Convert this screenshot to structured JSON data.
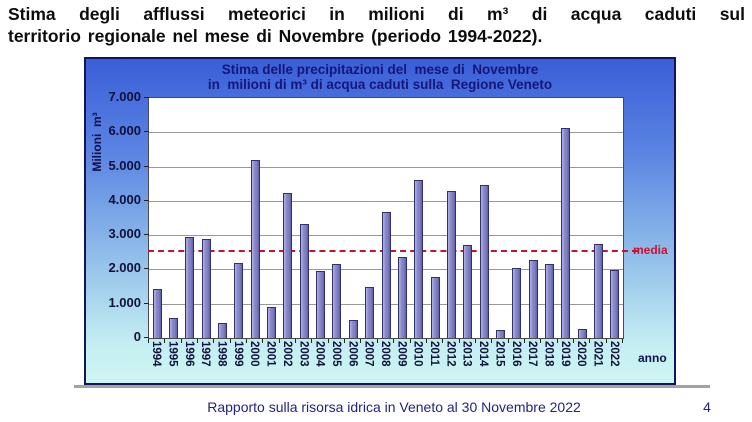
{
  "page": {
    "heading_line1": "Stima degli afflussi meteorici in milioni di m³ di acqua caduti sul",
    "heading_line2": "territorio regionale nel mese di Novembre (periodo 1994-2022).",
    "footer": "Rapporto sulla risorsa idrica in Veneto al 30 Novembre 2022",
    "page_number": "4"
  },
  "chart_data": {
    "type": "bar",
    "title_line1": "Stima delle precipitazioni del  mese di  Novembre",
    "title_line2": "in  milioni di m³ di acqua caduti sulla  Regione Veneto",
    "ylabel": "Milioni  m³",
    "xlabel": "anno",
    "ylim": [
      0,
      7000
    ],
    "ytick_labels": [
      "7.000",
      "6.000",
      "5.000",
      "4.000",
      "3.000",
      "2.000",
      "1.000",
      "0"
    ],
    "grid": true,
    "legend": "none",
    "categories": [
      "1994",
      "1995",
      "1996",
      "1997",
      "1998",
      "1999",
      "2000",
      "2001",
      "2002",
      "2003",
      "2004",
      "2005",
      "2006",
      "2007",
      "2008",
      "2009",
      "2010",
      "2011",
      "2012",
      "2013",
      "2014",
      "2015",
      "2016",
      "2017",
      "2018",
      "2019",
      "2020",
      "2021",
      "2022"
    ],
    "values": [
      1440,
      580,
      2950,
      2890,
      430,
      2190,
      5190,
      900,
      4220,
      3330,
      1950,
      2150,
      530,
      1480,
      3670,
      2370,
      4600,
      1780,
      4300,
      2710,
      4450,
      240,
      2050,
      2270,
      2150,
      6130,
      250,
      2740,
      1970
    ],
    "mean_line": {
      "value": 2500,
      "label": "media"
    },
    "colors": {
      "bar_fill": "#8989cb",
      "bar_border": "#30306a",
      "mean_line": "#c41230",
      "grid": "#999999",
      "chart_bg_top": "#3a5ed8",
      "chart_bg_bottom": "#cdf5f3",
      "title_text": "#16167a",
      "axis_text": "#10103a"
    }
  }
}
